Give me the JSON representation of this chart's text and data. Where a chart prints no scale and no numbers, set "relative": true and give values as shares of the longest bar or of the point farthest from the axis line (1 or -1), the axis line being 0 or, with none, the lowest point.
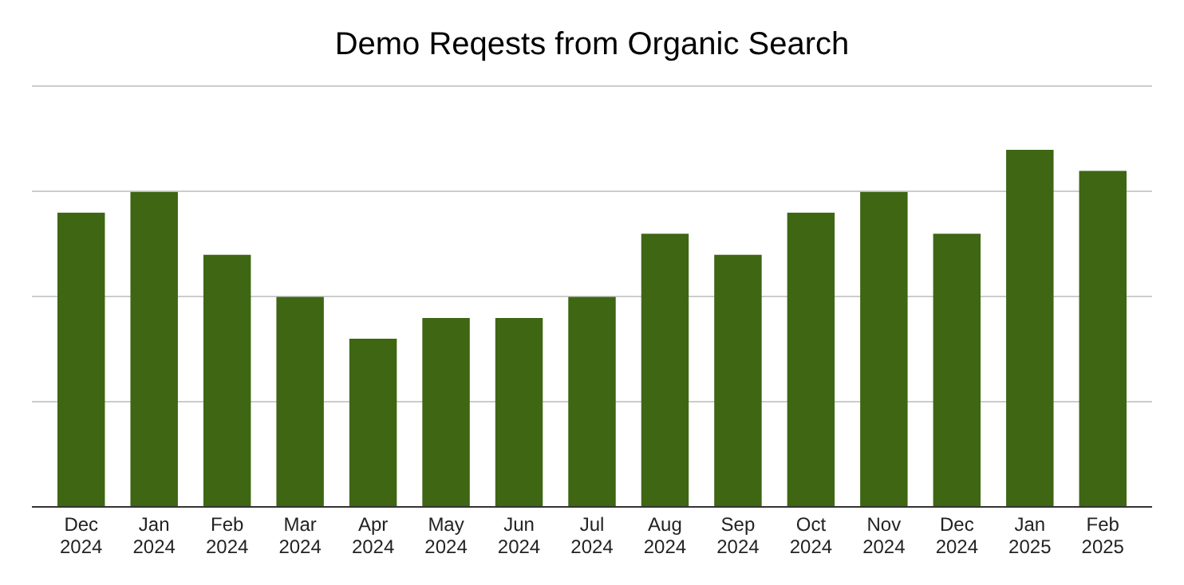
{
  "chart_data": {
    "type": "bar",
    "title": "Demo Reqests from Organic Search",
    "relative": true,
    "grid": true,
    "categories": [
      "Dec 2024",
      "Jan 2024",
      "Feb 2024",
      "Mar 2024",
      "Apr 2024",
      "May 2024",
      "Jun 2024",
      "Jul 2024",
      "Aug 2024",
      "Sep 2024",
      "Oct 2024",
      "Nov 2024",
      "Dec 2024",
      "Jan 2025",
      "Feb 2025"
    ],
    "values": [
      0.824,
      0.882,
      0.706,
      0.588,
      0.471,
      0.529,
      0.529,
      0.588,
      0.765,
      0.706,
      0.824,
      0.882,
      0.765,
      1,
      0.941
    ],
    "color": "#3e6613"
  }
}
